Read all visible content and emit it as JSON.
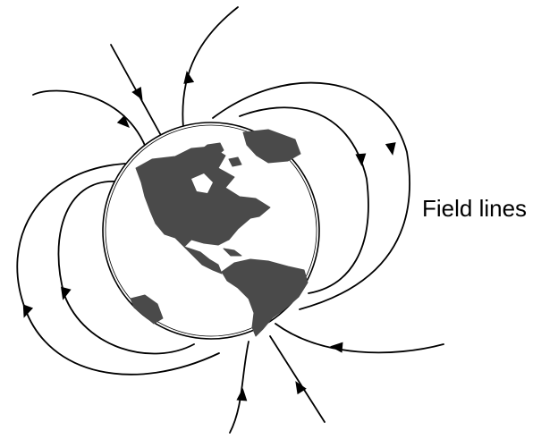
{
  "label": "Field lines",
  "colors": {
    "line": "#000000",
    "land": "#4a4a4a",
    "background": "#ffffff"
  },
  "icons": {
    "globe": "earth-globe-americas",
    "arrow": "arrowhead"
  }
}
